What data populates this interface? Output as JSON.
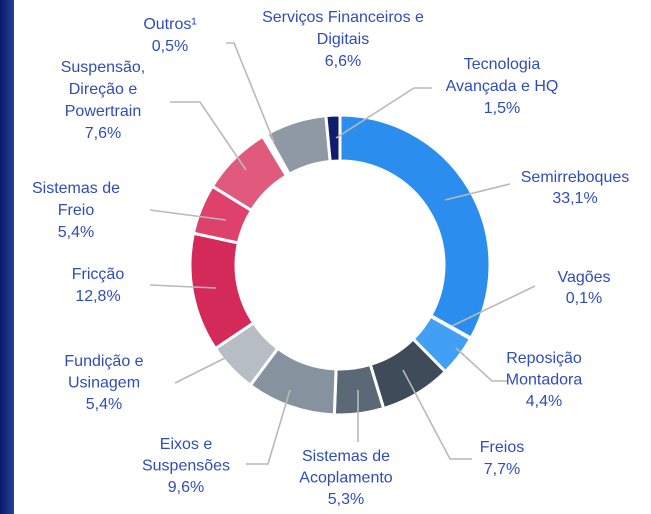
{
  "chart_data": {
    "type": "donut",
    "categories": [
      [
        "Semirreboques"
      ],
      [
        "Vagões"
      ],
      [
        "Reposição",
        "Montadora"
      ],
      [
        "Freios"
      ],
      [
        "Sistemas de",
        "Acoplamento"
      ],
      [
        "Eixos e",
        "Suspensões"
      ],
      [
        "Fundição e",
        "Usinagem"
      ],
      [
        "Fricção"
      ],
      [
        "Sistemas de",
        "Freio"
      ],
      [
        "Suspensão,",
        "Direção e",
        "Powertrain"
      ],
      [
        "Outros¹"
      ],
      [
        "Serviços Financeiros e",
        "Digitais"
      ],
      [
        "Tecnologia",
        "Avançada e HQ"
      ]
    ],
    "values": [
      33.1,
      0.1,
      4.4,
      7.7,
      5.3,
      9.6,
      5.4,
      12.8,
      5.4,
      7.6,
      0.5,
      6.6,
      1.5
    ],
    "value_labels": [
      "33,1%",
      "0,1%",
      "4,4%",
      "7,7%",
      "5,3%",
      "9,6%",
      "5,4%",
      "12,8%",
      "5,4%",
      "7,6%",
      "0,5%",
      "6,6%",
      "1,5%"
    ],
    "colors": [
      "#2b8eee",
      "#5aaef5",
      "#42a0f4",
      "#3e4b58",
      "#5b6876",
      "#86929e",
      "#b6bdc5",
      "#d32a5a",
      "#df416d",
      "#df5a7c",
      "#ffffff",
      "#8e99a4",
      "#0f1d6e"
    ]
  }
}
